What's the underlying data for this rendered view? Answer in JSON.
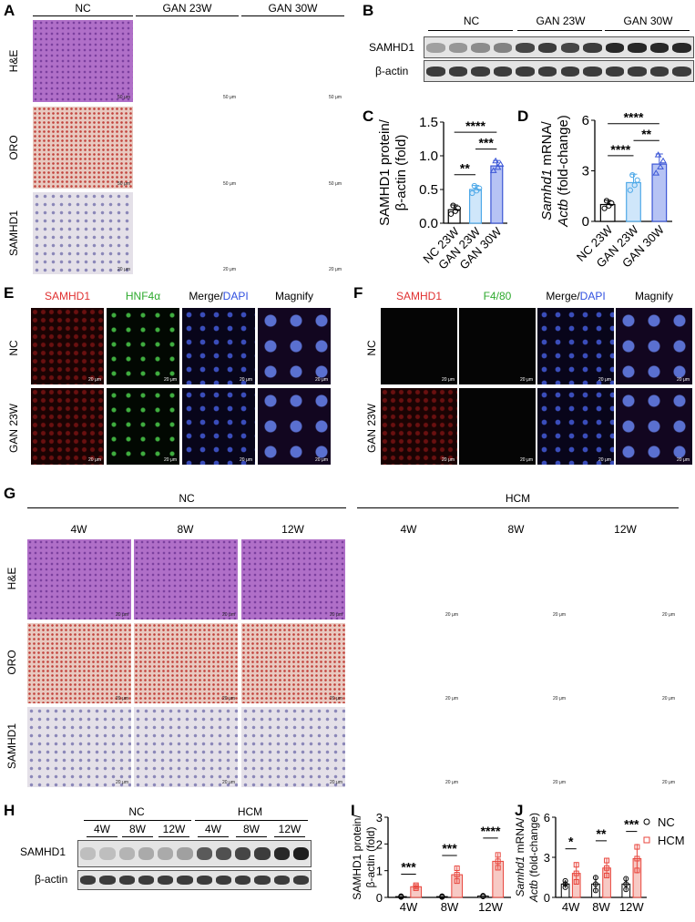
{
  "panels": {
    "A": "A",
    "B": "B",
    "C": "C",
    "D": "D",
    "E": "E",
    "F": "F",
    "G": "G",
    "H": "H",
    "I": "I",
    "J": "J"
  },
  "panelA": {
    "columns": [
      "NC",
      "GAN 23W",
      "GAN 30W"
    ],
    "rows": [
      "H&E",
      "ORO",
      "SAMHD1"
    ],
    "scale_top": "50 μm",
    "scale_bottom": "20 μm"
  },
  "panelB": {
    "groups": [
      "NC",
      "GAN 23W",
      "GAN 30W"
    ],
    "bands": [
      "SAMHD1",
      "β-actin"
    ],
    "lanes": 12,
    "samhd1_intensity": [
      0.35,
      0.4,
      0.45,
      0.5,
      0.8,
      0.85,
      0.8,
      0.85,
      0.95,
      0.95,
      0.95,
      0.95
    ]
  },
  "panelE": {
    "columns": [
      "SAMHD1",
      "HNF4α",
      "Merge/",
      "DAPI",
      "Magnify"
    ],
    "rows": [
      "NC",
      "GAN 23W"
    ],
    "scale": "20 μm"
  },
  "panelF": {
    "columns": [
      "SAMHD1",
      "F4/80",
      "Merge/",
      "DAPI",
      "Magnify"
    ],
    "rows": [
      "NC",
      "GAN 23W"
    ],
    "scale": "20 μm"
  },
  "panelG": {
    "groups": [
      "NC",
      "HCM"
    ],
    "timepoints": [
      "4W",
      "8W",
      "12W",
      "4W",
      "8W",
      "12W"
    ],
    "rows": [
      "H&E",
      "ORO",
      "SAMHD1"
    ],
    "scale": "20 μm"
  },
  "panelH": {
    "groups": [
      "NC",
      "HCM"
    ],
    "timepoints": [
      "4W",
      "8W",
      "12W",
      "4W",
      "8W",
      "12W"
    ],
    "bands": [
      "SAMHD1",
      "β-actin"
    ],
    "samhd1_intensity": [
      0.2,
      0.2,
      0.25,
      0.3,
      0.3,
      0.35,
      0.7,
      0.75,
      0.8,
      0.85,
      0.95,
      1.0
    ]
  },
  "colors": {
    "nc": "#000000",
    "gan23": "#4fa9e8",
    "gan30": "#3b56d6",
    "hcm": "#e8453c"
  },
  "chart_data": [
    {
      "type": "bar",
      "ylabel_lines": [
        "SAMHD1 protein/",
        "β-actin (fold)"
      ],
      "categories": [
        "NC 23W",
        "GAN 23W",
        "GAN 30W"
      ],
      "values": [
        0.2,
        0.5,
        0.85
      ],
      "errors": [
        0.07,
        0.06,
        0.08
      ],
      "ylim": [
        0,
        1.5
      ],
      "yticks": [
        "0.0",
        "0.5",
        "1.0",
        "1.5"
      ],
      "ytick_values": [
        0,
        0.5,
        1,
        1.5
      ],
      "significance": [
        {
          "from": 0,
          "to": 1,
          "label": "**",
          "y": 0.72
        },
        {
          "from": 1,
          "to": 2,
          "label": "***",
          "y": 1.1
        },
        {
          "from": 0,
          "to": 2,
          "label": "****",
          "y": 1.35
        }
      ]
    },
    {
      "type": "bar",
      "ylabel_lines": [
        "Samhd1 mRNA/",
        "Actb (fold-change)"
      ],
      "categories": [
        "NC 23W",
        "GAN 23W",
        "GAN 30W"
      ],
      "values": [
        1.0,
        2.3,
        3.4
      ],
      "errors": [
        0.25,
        0.5,
        0.6
      ],
      "ylim": [
        0,
        6
      ],
      "yticks": [
        "0",
        "3",
        "6"
      ],
      "ytick_values": [
        0,
        3,
        6
      ],
      "significance": [
        {
          "from": 0,
          "to": 1,
          "label": "****",
          "y": 3.9
        },
        {
          "from": 1,
          "to": 2,
          "label": "**",
          "y": 4.8
        },
        {
          "from": 0,
          "to": 2,
          "label": "****",
          "y": 5.8
        }
      ]
    },
    {
      "type": "bar",
      "ylabel_lines": [
        "SAMHD1 protein/",
        "β-actin (fold)"
      ],
      "categories": [
        "4W",
        "8W",
        "12W"
      ],
      "series": [
        {
          "name": "NC",
          "values": [
            0.03,
            0.03,
            0.05
          ],
          "errors": [
            0.02,
            0.02,
            0.02
          ]
        },
        {
          "name": "HCM",
          "values": [
            0.4,
            0.85,
            1.35
          ],
          "errors": [
            0.07,
            0.3,
            0.3
          ]
        }
      ],
      "ylim": [
        0,
        3
      ],
      "yticks": [
        "0",
        "1",
        "2",
        "3"
      ],
      "ytick_values": [
        0,
        1,
        2,
        3
      ],
      "significance": [
        {
          "group": 0,
          "label": "***",
          "y": 0.8
        },
        {
          "group": 1,
          "label": "***",
          "y": 1.5
        },
        {
          "group": 2,
          "label": "****",
          "y": 2.15
        }
      ]
    },
    {
      "type": "bar",
      "ylabel_lines": [
        "Samhd1 mRNA/",
        "Actb (fold-change)"
      ],
      "categories": [
        "4W",
        "8W",
        "12W"
      ],
      "series": [
        {
          "name": "NC",
          "values": [
            1.0,
            1.0,
            1.0
          ],
          "errors": [
            0.3,
            0.6,
            0.5
          ]
        },
        {
          "name": "HCM",
          "values": [
            1.8,
            2.2,
            2.9
          ],
          "errors": [
            0.8,
            0.7,
            1.1
          ]
        }
      ],
      "ylim": [
        0,
        6
      ],
      "yticks": [
        "0",
        "3",
        "6"
      ],
      "ytick_values": [
        0,
        3,
        6
      ],
      "legend": "top-right",
      "significance": [
        {
          "group": 0,
          "label": "*",
          "y": 3.5
        },
        {
          "group": 1,
          "label": "**",
          "y": 4.1
        },
        {
          "group": 2,
          "label": "***",
          "y": 4.8
        }
      ]
    }
  ]
}
